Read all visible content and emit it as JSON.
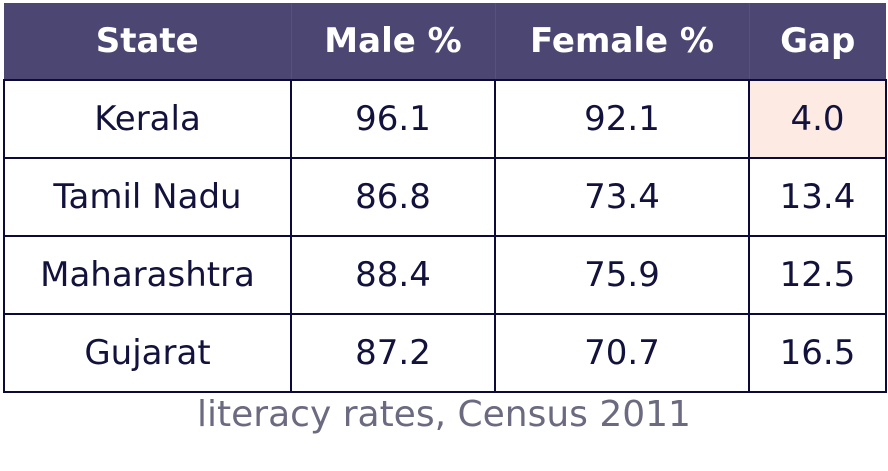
{
  "table": {
    "columns": [
      "State",
      "Male %",
      "Female %",
      "Gap"
    ],
    "rows": [
      [
        "Kerala",
        "96.1",
        "92.1",
        "4.0"
      ],
      [
        "Tamil Nadu",
        "86.8",
        "73.4",
        "13.4"
      ],
      [
        "Maharashtra",
        "88.4",
        "75.9",
        "12.5"
      ],
      [
        "Gujarat",
        "87.2",
        "70.7",
        "16.5"
      ]
    ]
  },
  "caption": "literacy rates, Census 2011"
}
